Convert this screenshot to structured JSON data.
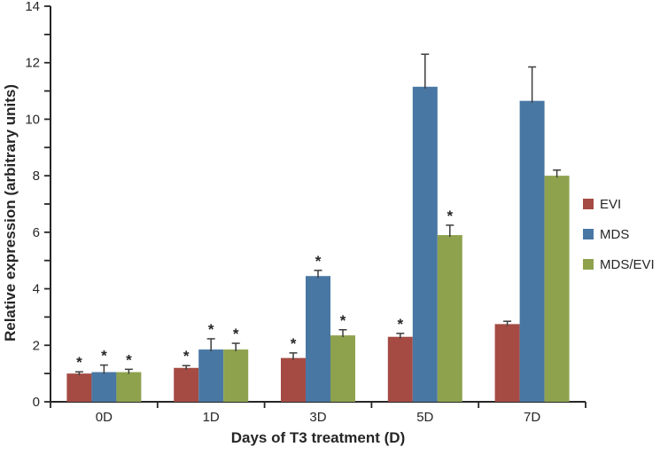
{
  "figure": {
    "background": "#ffffff",
    "axis_color": "#262626",
    "error_bar_color": "#3d3d3d",
    "text_color": "#262626"
  },
  "chart_data": {
    "type": "bar",
    "title": "",
    "xlabel": "Days of T3 treatment (D)",
    "ylabel": "Relative expression (arbitrary units)",
    "categories": [
      "0D",
      "1D",
      "3D",
      "5D",
      "7D"
    ],
    "series": [
      {
        "name": "EVI",
        "color": "#A54B44",
        "values": [
          1.0,
          1.2,
          1.55,
          2.3,
          2.75
        ],
        "errors": [
          0.06,
          0.08,
          0.18,
          0.12,
          0.1
        ],
        "significant": [
          true,
          true,
          true,
          true,
          false
        ]
      },
      {
        "name": "MDS",
        "color": "#4977A3",
        "values": [
          1.05,
          1.85,
          4.45,
          11.15,
          10.65
        ],
        "errors": [
          0.25,
          0.38,
          0.2,
          1.15,
          1.2
        ],
        "significant": [
          true,
          true,
          true,
          false,
          false
        ]
      },
      {
        "name": "MDS/EVI",
        "color": "#8EA24E",
        "values": [
          1.05,
          1.85,
          2.35,
          5.9,
          8.0
        ],
        "errors": [
          0.1,
          0.22,
          0.2,
          0.35,
          0.2
        ],
        "significant": [
          true,
          true,
          true,
          true,
          false
        ]
      }
    ],
    "ylim": [
      0,
      14
    ],
    "y_major_ticks": [
      0,
      2,
      4,
      6,
      8,
      10,
      12,
      14
    ],
    "y_minor_tick_step": 1,
    "grid": false,
    "legend_position": "right",
    "significance_marker": "*",
    "error_bars": "plus-direction-with-cap"
  }
}
